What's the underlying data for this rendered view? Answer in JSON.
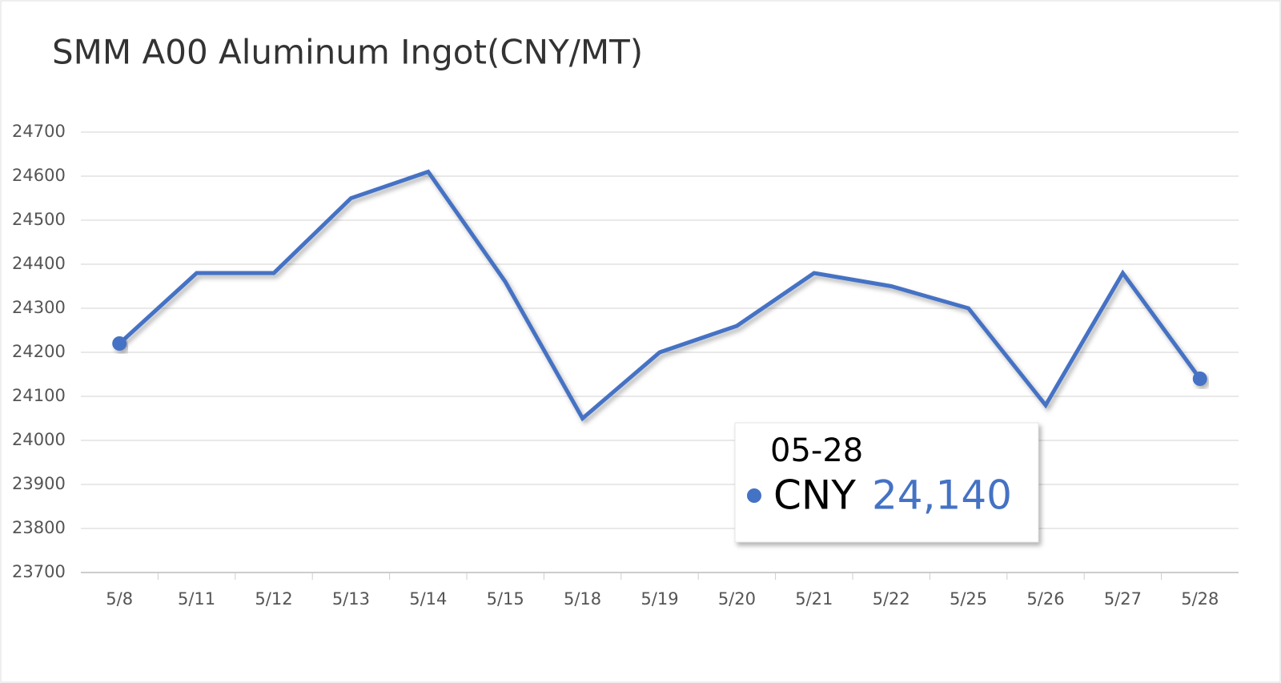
{
  "chart_data": {
    "type": "line",
    "title": "SMM A00 Aluminum Ingot(CNY/MT)",
    "categories": [
      "5/8",
      "5/11",
      "5/12",
      "5/13",
      "5/14",
      "5/15",
      "5/18",
      "5/19",
      "5/20",
      "5/21",
      "5/22",
      "5/25",
      "5/26",
      "5/27",
      "5/28"
    ],
    "series": [
      {
        "name": "CNY",
        "color": "#4472c4",
        "values": [
          24220,
          24380,
          24380,
          24550,
          24610,
          24360,
          24050,
          24200,
          24260,
          24380,
          24350,
          24300,
          24080,
          24380,
          24140
        ]
      }
    ],
    "ylim": [
      23700,
      24700
    ],
    "yticks": [
      23700,
      23800,
      23900,
      24000,
      24100,
      24200,
      24300,
      24400,
      24500,
      24600,
      24700
    ],
    "grid": true,
    "tooltip": {
      "title": "05-28",
      "value_label": "24,140"
    }
  }
}
